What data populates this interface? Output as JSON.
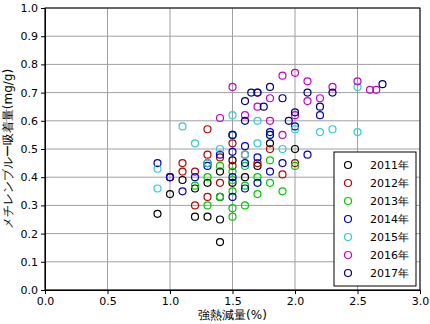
{
  "chart_data": {
    "type": "scatter",
    "x_label": "強熱減量(%)",
    "y_label": "メチレンブルー吸着量(mg/g)",
    "xlim": [
      0,
      3
    ],
    "ylim": [
      0,
      1
    ],
    "xticks": [
      {
        "value": 0,
        "label": "0.0"
      },
      0.5,
      {
        "value": 1,
        "label": "1.0"
      },
      1.5,
      {
        "value": 2,
        "label": "2.0"
      },
      2.5,
      {
        "value": 3,
        "label": "3.0"
      }
    ],
    "yticks": [
      {
        "value": 0,
        "label": "0.0"
      },
      0.1,
      0.2,
      0.3,
      0.4,
      0.5,
      0.6,
      0.7,
      0.8,
      0.9,
      {
        "value": 1,
        "label": "1.0"
      }
    ],
    "grid": true,
    "legend": "lower right",
    "marker": "open-circle",
    "series": [
      {
        "name": "2011年",
        "color": "#000000",
        "x": [
          0.9,
          1.0,
          1.0,
          1.1,
          1.2,
          1.2,
          1.3,
          1.3,
          1.3,
          1.4,
          1.4,
          1.4,
          1.4,
          1.5,
          1.5,
          1.6,
          1.7,
          1.8,
          2.0
        ],
        "values": [
          0.27,
          0.34,
          0.4,
          0.39,
          0.26,
          0.36,
          0.26,
          0.38,
          0.45,
          0.17,
          0.25,
          0.33,
          0.42,
          0.38,
          0.46,
          0.4,
          0.44,
          0.52,
          0.5
        ]
      },
      {
        "name": "2012年",
        "color": "#c00000",
        "x": [
          1.0,
          1.1,
          1.1,
          1.2,
          1.2,
          1.3,
          1.3,
          1.3,
          1.4,
          1.4,
          1.5,
          1.5,
          1.6,
          1.7,
          1.8,
          1.9,
          2.0
        ],
        "values": [
          0.4,
          0.42,
          0.45,
          0.3,
          0.42,
          0.57,
          0.48,
          0.33,
          0.47,
          0.38,
          0.52,
          0.44,
          0.48,
          0.45,
          0.5,
          0.41,
          0.45
        ]
      },
      {
        "name": "2013年",
        "color": "#00cc00",
        "x": [
          1.2,
          1.3,
          1.3,
          1.4,
          1.4,
          1.5,
          1.5,
          1.5,
          1.5,
          1.5,
          1.6,
          1.6,
          1.6,
          1.7,
          1.7,
          1.8,
          1.8,
          1.9,
          2.0
        ],
        "values": [
          0.37,
          0.3,
          0.4,
          0.44,
          0.33,
          0.26,
          0.29,
          0.35,
          0.39,
          0.42,
          0.3,
          0.37,
          0.44,
          0.34,
          0.4,
          0.38,
          0.46,
          0.35,
          0.44
        ]
      },
      {
        "name": "2014年",
        "color": "#0000cc",
        "x": [
          0.9,
          1.0,
          1.1,
          1.2,
          1.3,
          1.4,
          1.5,
          1.5,
          1.5,
          1.5,
          1.6,
          1.6,
          1.6,
          1.7,
          1.7,
          1.8,
          1.8,
          1.9,
          2.0,
          2.1,
          2.2
        ],
        "values": [
          0.45,
          0.4,
          0.35,
          0.4,
          0.44,
          0.48,
          0.33,
          0.4,
          0.49,
          0.55,
          0.36,
          0.45,
          0.51,
          0.38,
          0.47,
          0.42,
          0.56,
          0.45,
          0.58,
          0.48,
          0.62
        ]
      },
      {
        "name": "2015年",
        "color": "#33cccc",
        "x": [
          0.9,
          0.9,
          1.1,
          1.2,
          1.3,
          1.4,
          1.5,
          1.5,
          1.6,
          1.7,
          1.7,
          1.8,
          1.9,
          2.0,
          2.2,
          2.3,
          2.5,
          2.5
        ],
        "values": [
          0.36,
          0.43,
          0.58,
          0.52,
          0.45,
          0.5,
          0.55,
          0.62,
          0.48,
          0.52,
          0.6,
          0.55,
          0.5,
          0.57,
          0.56,
          0.57,
          0.56,
          0.72
        ]
      },
      {
        "name": "2016年",
        "color": "#cc00cc",
        "x": [
          1.4,
          1.5,
          1.6,
          1.7,
          1.7,
          1.8,
          1.8,
          1.9,
          1.9,
          2.0,
          2.0,
          2.1,
          2.1,
          2.2,
          2.3,
          2.5,
          2.6,
          2.65
        ],
        "values": [
          0.61,
          0.72,
          0.62,
          0.65,
          0.7,
          0.6,
          0.68,
          0.55,
          0.76,
          0.77,
          0.62,
          0.67,
          0.74,
          0.68,
          0.72,
          0.74,
          0.71,
          0.71
        ]
      },
      {
        "name": "2017年",
        "color": "#000080",
        "x": [
          1.5,
          1.6,
          1.6,
          1.65,
          1.7,
          1.75,
          1.8,
          1.8,
          1.9,
          1.95,
          2.0,
          2.1,
          2.2,
          2.3,
          2.7
        ],
        "values": [
          0.55,
          0.6,
          0.67,
          0.7,
          0.7,
          0.65,
          0.55,
          0.72,
          0.68,
          0.6,
          0.63,
          0.7,
          0.65,
          0.7,
          0.73
        ]
      }
    ]
  }
}
